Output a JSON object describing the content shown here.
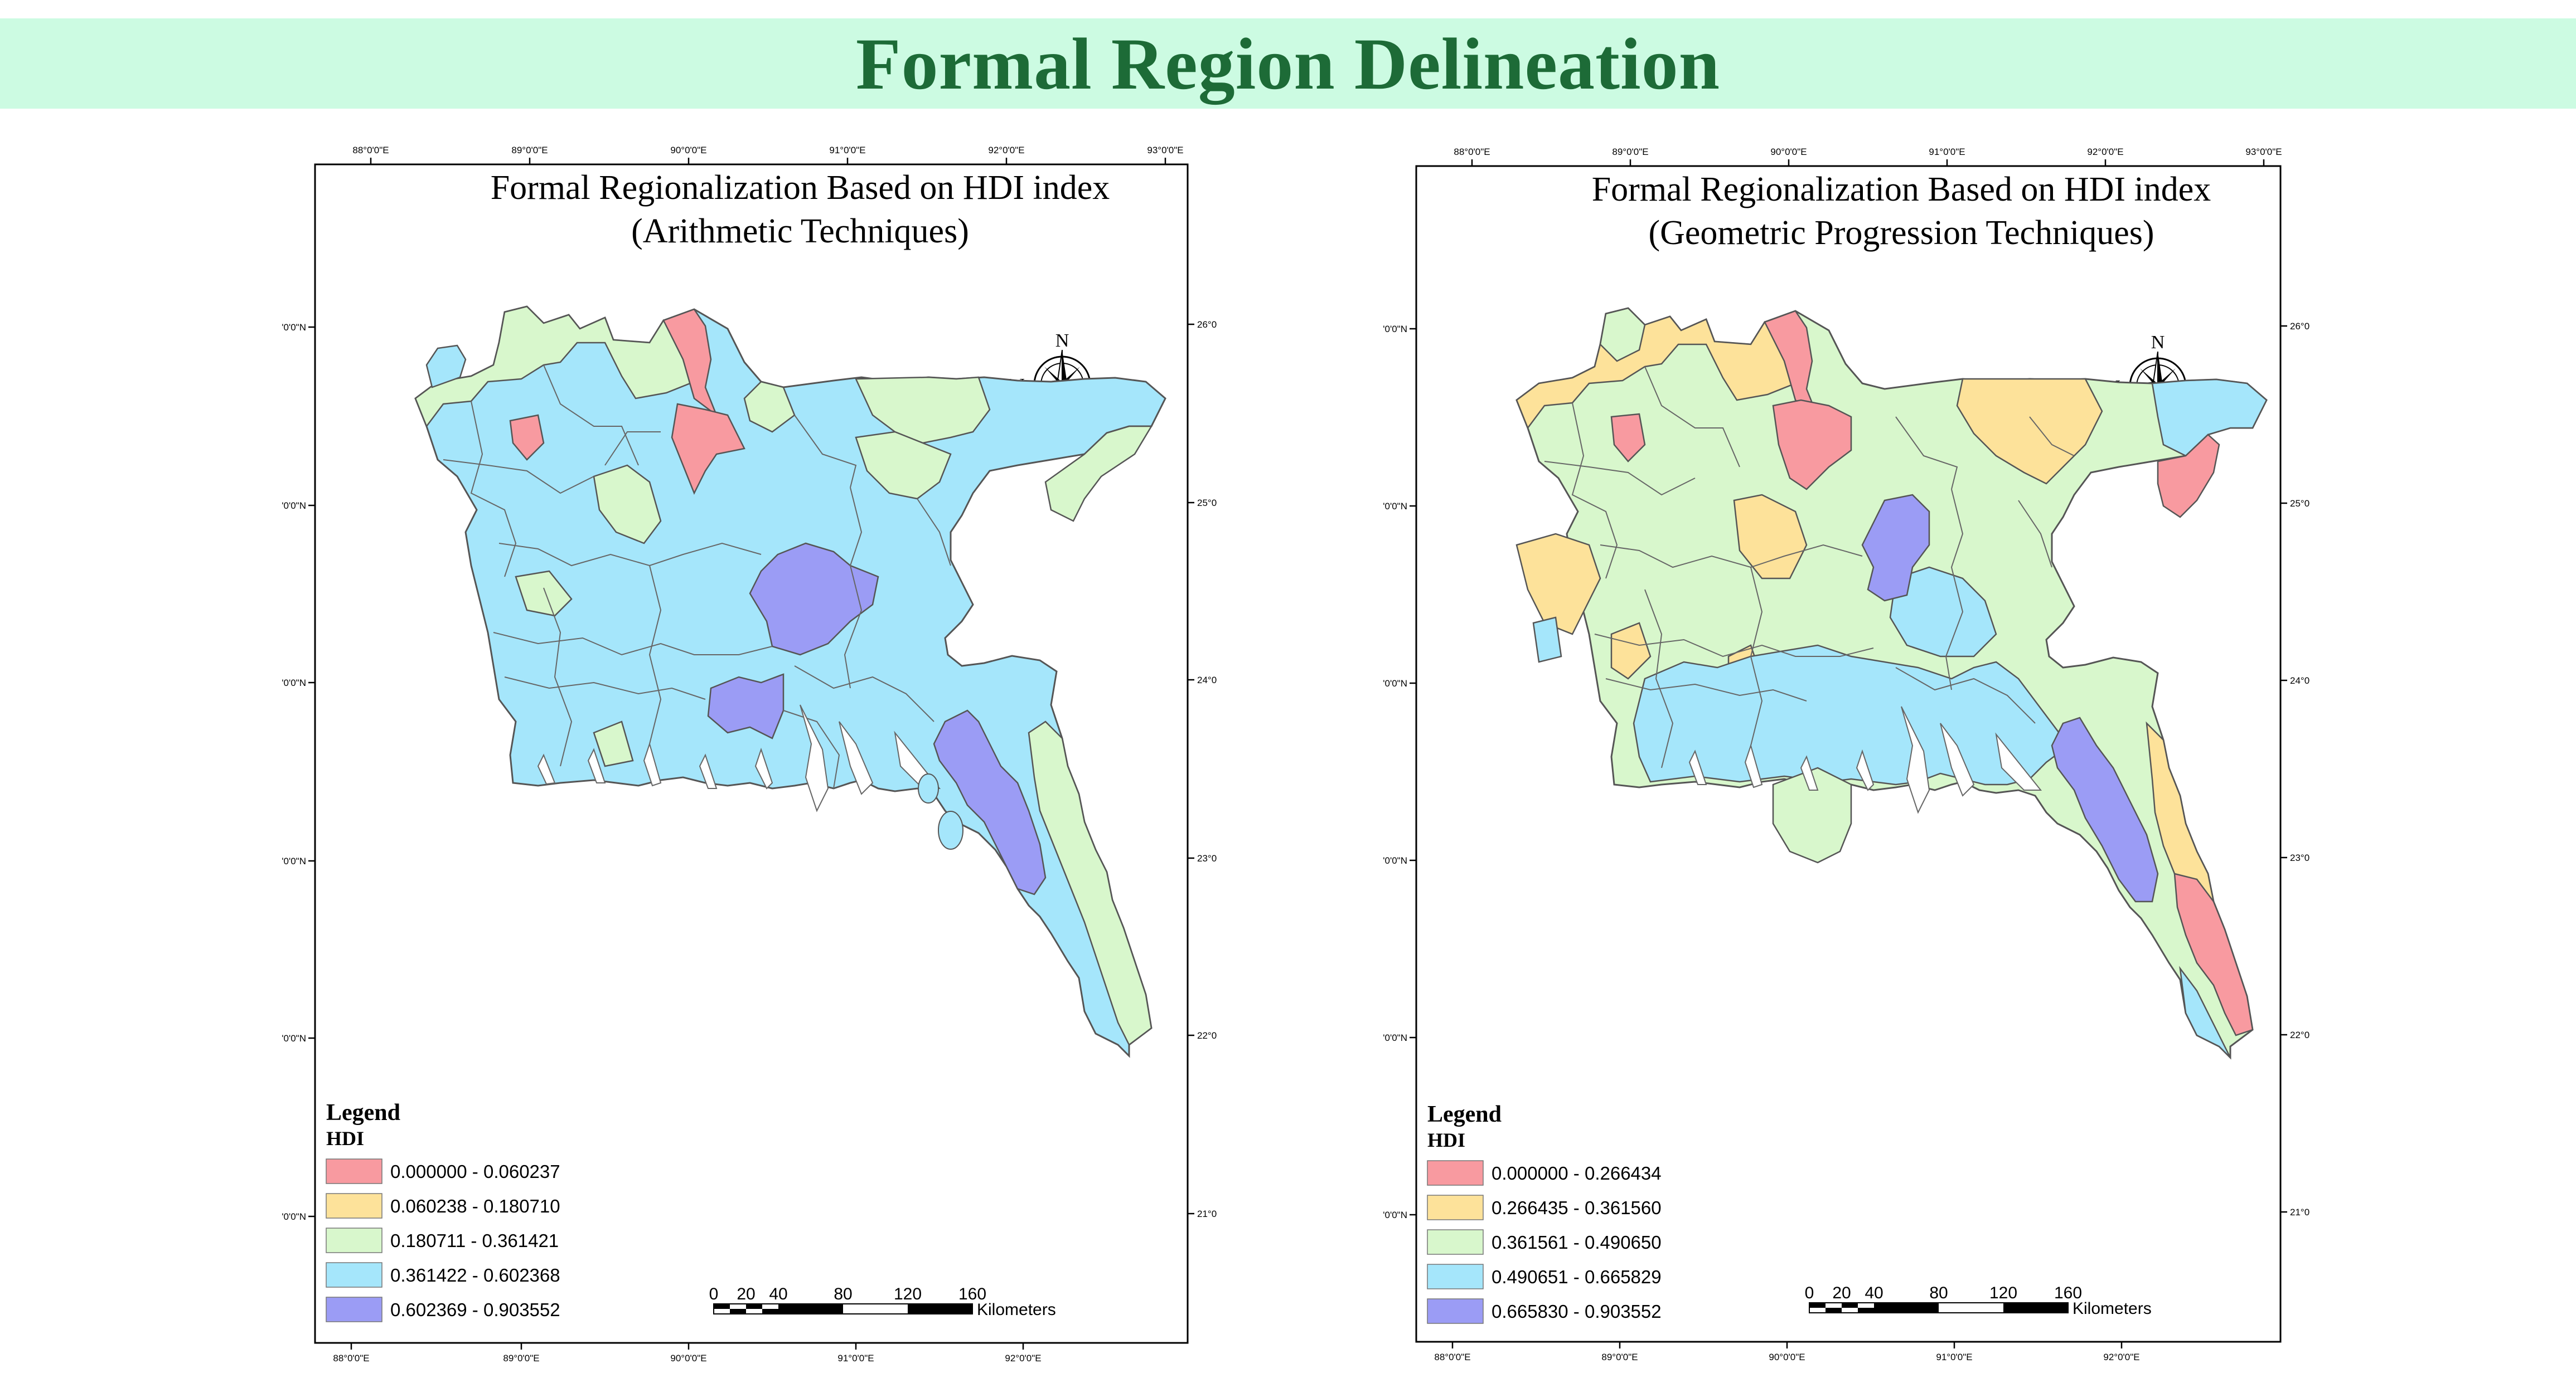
{
  "page_title": "Formal Region Delineation",
  "colors": {
    "banner_bg": "#ccfbe2",
    "title_text": "#1d6b37",
    "class_1": "#f89aa0",
    "class_2": "#fde29a",
    "class_3": "#d8f7cc",
    "class_4": "#a5e6fb",
    "class_5": "#9b9cf5"
  },
  "maps": [
    {
      "title_line1": "Formal Regionalization Based on HDI index",
      "title_line2": "(Arithmetic Techniques)",
      "legend_title": "Legend",
      "legend_subtitle": "HDI",
      "legend": [
        {
          "label": "0.000000 - 0.060237",
          "color": "#f89aa0"
        },
        {
          "label": "0.060238 - 0.180710",
          "color": "#fde29a"
        },
        {
          "label": "0.180711 - 0.361421",
          "color": "#d8f7cc"
        },
        {
          "label": "0.361422 - 0.602368",
          "color": "#a5e6fb"
        },
        {
          "label": "0.602369 - 0.903552",
          "color": "#9b9cf5"
        }
      ],
      "top_lon_labels": [
        "88°0'0\"E",
        "89°0'0\"E",
        "90°0'0\"E",
        "91°0'0\"E",
        "92°0'0\"E",
        "93°0'0\"E"
      ],
      "bottom_lon_labels": [
        "88°0'0\"E",
        "89°0'0\"E",
        "90°0'0\"E",
        "91°0'0\"E",
        "92°0'0\"E"
      ],
      "left_lat_labels": [
        "'0'0\"N",
        "'0'0\"N",
        "'0'0\"N",
        "'0'0\"N",
        "'0'0\"N",
        "'0'0\"N"
      ],
      "right_lat_labels": [
        "26°0",
        "25°0",
        "24°0",
        "23°0",
        "22°0",
        "21°0"
      ]
    },
    {
      "title_line1": "Formal Regionalization Based on HDI index",
      "title_line2": "(Geometric Progression Techniques)",
      "legend_title": "Legend",
      "legend_subtitle": "HDI",
      "legend": [
        {
          "label": "0.000000 - 0.266434",
          "color": "#f89aa0"
        },
        {
          "label": "0.266435 - 0.361560",
          "color": "#fde29a"
        },
        {
          "label": "0.361561 - 0.490650",
          "color": "#d8f7cc"
        },
        {
          "label": "0.490651 - 0.665829",
          "color": "#a5e6fb"
        },
        {
          "label": "0.665830 - 0.903552",
          "color": "#9b9cf5"
        }
      ],
      "top_lon_labels": [
        "88°0'0\"E",
        "89°0'0\"E",
        "90°0'0\"E",
        "91°0'0\"E",
        "92°0'0\"E",
        "93°0'0\"E"
      ],
      "bottom_lon_labels": [
        "88°0'0\"E",
        "89°0'0\"E",
        "90°0'0\"E",
        "91°0'0\"E",
        "92°0'0\"E"
      ],
      "left_lat_labels": [
        "'0'0\"N",
        "'0'0\"N",
        "'0'0\"N",
        "'0'0\"N",
        "'0'0\"N",
        "'0'0\"N"
      ],
      "right_lat_labels": [
        "26°0",
        "25°0",
        "24°0",
        "23°0",
        "22°0",
        "21°0"
      ]
    }
  ],
  "compass": {
    "north": "N",
    "south": "S",
    "east": "E",
    "west": "W"
  },
  "scale_bar": {
    "ticks": [
      "0",
      "20",
      "40",
      "80",
      "120",
      "160"
    ],
    "unit": "Kilometers"
  }
}
